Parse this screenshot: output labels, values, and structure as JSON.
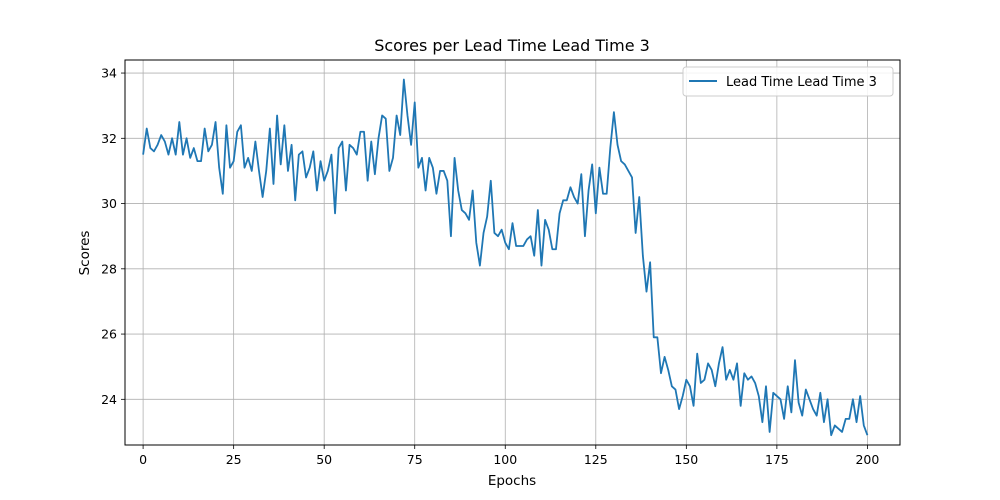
{
  "chart_data": {
    "type": "line",
    "title": "Scores per Lead Time Lead Time 3",
    "xlabel": "Epochs",
    "ylabel": "Scores",
    "xlim": [
      -5,
      209
    ],
    "ylim": [
      22.6,
      34.4
    ],
    "xticks": [
      0,
      25,
      50,
      75,
      100,
      125,
      150,
      175,
      200
    ],
    "yticks": [
      24,
      26,
      28,
      30,
      32,
      34
    ],
    "grid": true,
    "legend_position": "top-right",
    "series": [
      {
        "name": "Lead Time Lead Time 3",
        "color": "#1f77b4",
        "values": [
          31.5,
          32.3,
          31.7,
          31.6,
          31.8,
          32.1,
          31.9,
          31.5,
          32.0,
          31.5,
          32.5,
          31.5,
          32.0,
          31.4,
          31.7,
          31.3,
          31.3,
          32.3,
          31.6,
          31.8,
          32.5,
          31.1,
          30.3,
          32.4,
          31.1,
          31.3,
          32.2,
          32.4,
          31.1,
          31.4,
          31.0,
          31.9,
          31.0,
          30.2,
          31.0,
          32.3,
          30.6,
          32.7,
          31.2,
          32.4,
          31.0,
          31.8,
          30.1,
          31.5,
          31.6,
          30.8,
          31.1,
          31.6,
          30.4,
          31.3,
          30.7,
          31.0,
          31.5,
          29.7,
          31.7,
          31.9,
          30.4,
          31.8,
          31.7,
          31.5,
          32.2,
          32.2,
          30.7,
          31.9,
          30.9,
          32.0,
          32.7,
          32.6,
          31.0,
          31.4,
          32.7,
          32.1,
          33.8,
          32.7,
          31.8,
          33.1,
          31.1,
          31.4,
          30.4,
          31.4,
          31.1,
          30.3,
          31.0,
          31.0,
          30.7,
          29.0,
          31.4,
          30.4,
          29.8,
          29.7,
          29.5,
          30.4,
          28.8,
          28.1,
          29.1,
          29.6,
          30.7,
          29.1,
          29.0,
          29.2,
          28.8,
          28.6,
          29.4,
          28.7,
          28.7,
          28.7,
          28.9,
          29.0,
          28.4,
          29.8,
          28.1,
          29.5,
          29.2,
          28.6,
          28.6,
          29.7,
          30.1,
          30.1,
          30.5,
          30.2,
          30.0,
          30.9,
          29.0,
          30.4,
          31.2,
          29.7,
          31.1,
          30.3,
          30.3,
          31.7,
          32.8,
          31.8,
          31.3,
          31.2,
          31.0,
          30.8,
          29.1,
          30.2,
          28.4,
          27.3,
          28.2,
          25.9,
          25.9,
          24.8,
          25.3,
          24.9,
          24.4,
          24.3,
          23.7,
          24.1,
          24.6,
          24.4,
          23.8,
          25.4,
          24.5,
          24.6,
          25.1,
          24.9,
          24.4,
          25.1,
          25.6,
          24.6,
          24.9,
          24.6,
          25.1,
          23.8,
          24.8,
          24.6,
          24.7,
          24.5,
          24.1,
          23.3,
          24.4,
          23.0,
          24.2,
          24.1,
          24.0,
          23.4,
          24.4,
          23.6,
          25.2,
          23.9,
          23.5,
          24.3,
          24.0,
          23.7,
          23.5,
          24.2,
          23.3,
          24.0,
          22.9,
          23.2,
          23.1,
          23.0,
          23.4,
          23.4,
          24.0,
          23.3,
          24.1,
          23.2,
          22.9
        ]
      }
    ]
  }
}
